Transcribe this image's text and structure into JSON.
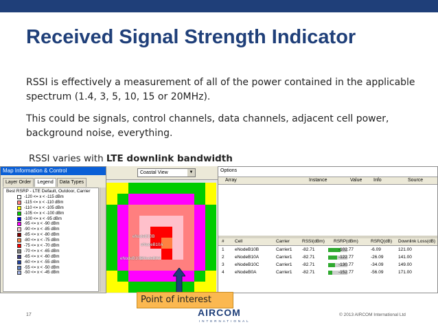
{
  "slide": {
    "title": "Received Signal Strength Indicator",
    "paragraph1": "RSSI is effectively a measurement of all of the power contained in the applicable spectrum (1.4, 3, 5, 10, 15 or 20MHz).",
    "paragraph2": "This could be signals, control channels, data channels, adjacent cell power, background noise, everything.",
    "bandwidth_prefix": "RSSI varies with ",
    "bandwidth_bold": "LTE downlink bandwidth",
    "callout": "Point of interest",
    "page_number": "17",
    "logo": "AIRCOM",
    "logo_sub": "INTERNATIONAL",
    "copyright": "© 2013 AIRCOM International Ltd"
  },
  "map_panel": {
    "header": "Map Information & Control",
    "tabs": [
      "Layer Order",
      "Legend",
      "Data Types"
    ],
    "legend_title": "Best RSRP - LTE Default, Outdoor, Carrier",
    "legend": [
      {
        "label": "-120 <= x < -115 dBm",
        "color": "#ffffff"
      },
      {
        "label": "-115 <= x < -110 dBm",
        "color": "#ff7f7f"
      },
      {
        "label": "-110 <= x < -105 dBm",
        "color": "#ffff00"
      },
      {
        "label": "-105 <= x < -100 dBm",
        "color": "#00cc00"
      },
      {
        "label": "-100 <= x < -95 dBm",
        "color": "#0000ff"
      },
      {
        "label": "-95 <= x < -90 dBm",
        "color": "#ff00ff"
      },
      {
        "label": "-90 <= x < -85 dBm",
        "color": "#ffc0cb"
      },
      {
        "label": "-85 <= x < -80 dBm",
        "color": "#800000"
      },
      {
        "label": "-80 <= x < -75 dBm",
        "color": "#ff8040"
      },
      {
        "label": "-75 <= x < -70 dBm",
        "color": "#ff0000"
      },
      {
        "label": "-70 <= x < -65 dBm",
        "color": "#808080"
      },
      {
        "label": "-65 <= x < -60 dBm",
        "color": "#404080"
      },
      {
        "label": "-60 <= x < -55 dBm",
        "color": "#2040a0"
      },
      {
        "label": "-55 <= x < -50 dBm",
        "color": "#6080c0"
      },
      {
        "label": "-50 <= x < -45 dBm",
        "color": "#a0b0e0"
      }
    ]
  },
  "map": {
    "view_select": "Coastal View",
    "labels": [
      "eNodeB10B",
      "eNodeB10A",
      "eNodeB10C",
      "eNodeB0A"
    ]
  },
  "options_panel": {
    "title": "Options",
    "columns": [
      "Array",
      "Instance",
      "Value",
      "Info",
      "Source"
    ],
    "cell_columns": [
      "#",
      "Cell",
      "Carrier",
      "RSSI(dBm)",
      "RSRP(dBm)",
      "RSRQ(dB)",
      "Downlink Loss(dB)"
    ],
    "rows": [
      {
        "num": "1",
        "cell": "eNodeB10B",
        "carrier": "Carrier1",
        "rssi": "-82.71",
        "rsrp": "-102.77",
        "rsrp_level": 0.65,
        "rsrq": "-6.09",
        "loss": "121.00"
      },
      {
        "num": "2",
        "cell": "eNodeB10A",
        "carrier": "Carrier1",
        "rssi": "-82.71",
        "rsrp": "-122.77",
        "rsrp_level": 0.45,
        "rsrq": "-26.09",
        "loss": "141.00"
      },
      {
        "num": "3",
        "cell": "eNodeB10C",
        "carrier": "Carrier1",
        "rssi": "-82.71",
        "rsrp": "-130.77",
        "rsrp_level": 0.35,
        "rsrq": "-34.09",
        "loss": "149.00"
      },
      {
        "num": "4",
        "cell": "eNodeB0A",
        "carrier": "Carrier1",
        "rssi": "-82.71",
        "rsrp": "-152.77",
        "rsrp_level": 0.2,
        "rsrq": "-56.09",
        "loss": "171.00"
      }
    ]
  },
  "colors": {
    "title": "#1f3f79",
    "callout": "#fbb850",
    "bar": "#2faa2f"
  }
}
